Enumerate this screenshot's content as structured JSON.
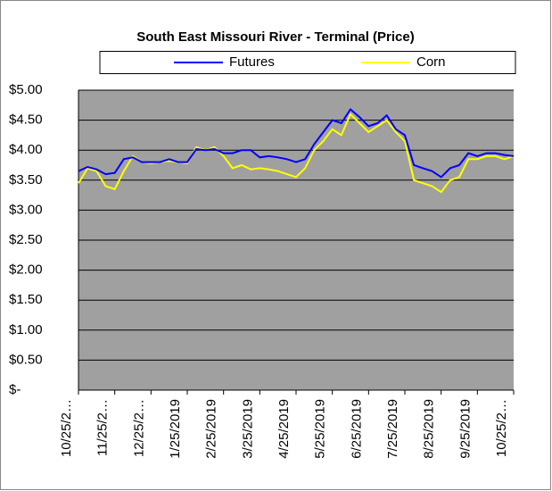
{
  "chart_data": {
    "type": "line",
    "title": "South East Missouri River - Terminal (Price)",
    "categories": [
      "10/25/2…",
      null,
      null,
      null,
      "11/25/2…",
      null,
      null,
      null,
      "12/25/2…",
      null,
      null,
      null,
      "1/25/2019",
      null,
      null,
      null,
      "2/25/2019",
      null,
      null,
      null,
      "3/25/2019",
      null,
      null,
      null,
      "4/25/2019",
      null,
      null,
      null,
      "5/25/2019",
      null,
      null,
      null,
      "6/25/2019",
      null,
      null,
      null,
      "7/25/2019",
      null,
      null,
      null,
      "8/25/2019",
      null,
      null,
      null,
      "9/25/2019",
      null,
      null,
      null,
      "10/25/2…"
    ],
    "series": [
      {
        "name": "Futures",
        "color": "#0000ff",
        "values": [
          3.65,
          3.72,
          3.68,
          3.6,
          3.62,
          3.85,
          3.88,
          3.8,
          3.8,
          3.8,
          3.85,
          3.8,
          3.8,
          4.02,
          4.0,
          4.02,
          3.95,
          3.95,
          4.0,
          4.0,
          3.88,
          3.9,
          3.88,
          3.85,
          3.8,
          3.85,
          4.1,
          4.3,
          4.5,
          4.45,
          4.68,
          4.55,
          4.4,
          4.45,
          4.58,
          4.35,
          4.25,
          3.75,
          3.7,
          3.65,
          3.55,
          3.7,
          3.75,
          3.95,
          3.9,
          3.95,
          3.95,
          3.92,
          3.9
        ]
      },
      {
        "name": "Corn",
        "color": "#ffff00",
        "values": [
          3.45,
          3.7,
          3.65,
          3.4,
          3.35,
          3.65,
          3.9,
          3.8,
          3.78,
          3.8,
          3.82,
          3.8,
          3.78,
          4.05,
          4.0,
          4.05,
          3.9,
          3.7,
          3.75,
          3.68,
          3.7,
          3.68,
          3.65,
          3.6,
          3.55,
          3.7,
          4.0,
          4.15,
          4.35,
          4.25,
          4.6,
          4.45,
          4.3,
          4.4,
          4.5,
          4.3,
          4.15,
          3.5,
          3.45,
          3.4,
          3.3,
          3.5,
          3.55,
          3.85,
          3.85,
          3.9,
          3.9,
          3.85,
          3.9
        ]
      }
    ],
    "ylim": [
      0,
      5
    ],
    "yticks": [
      {
        "value": 0,
        "label": "$-"
      },
      {
        "value": 0.5,
        "label": "$0.50"
      },
      {
        "value": 1,
        "label": "$1.00"
      },
      {
        "value": 1.5,
        "label": "$1.50"
      },
      {
        "value": 2,
        "label": "$2.00"
      },
      {
        "value": 2.5,
        "label": "$2.50"
      },
      {
        "value": 3,
        "label": "$3.00"
      },
      {
        "value": 3.5,
        "label": "$3.50"
      },
      {
        "value": 4,
        "label": "$4.00"
      },
      {
        "value": 4.5,
        "label": "$4.50"
      },
      {
        "value": 5,
        "label": "$5.00"
      }
    ],
    "grid": true,
    "plot_color": "#a0a0a0"
  }
}
